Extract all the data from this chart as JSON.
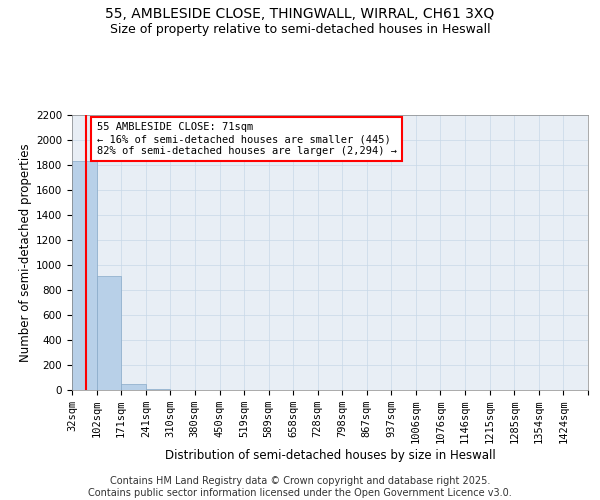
{
  "title": "55, AMBLESIDE CLOSE, THINGWALL, WIRRAL, CH61 3XQ",
  "subtitle": "Size of property relative to semi-detached houses in Heswall",
  "xlabel": "Distribution of semi-detached houses by size in Heswall",
  "ylabel": "Number of semi-detached properties",
  "bar_color": "#b8d0e8",
  "bar_edge_color": "#88aac8",
  "property_line_x": 71,
  "property_line_color": "red",
  "annotation_title": "55 AMBLESIDE CLOSE: 71sqm",
  "annotation_line1": "← 16% of semi-detached houses are smaller (445)",
  "annotation_line2": "82% of semi-detached houses are larger (2,294) →",
  "bin_labels": [
    "32sqm",
    "102sqm",
    "171sqm",
    "241sqm",
    "310sqm",
    "380sqm",
    "450sqm",
    "519sqm",
    "589sqm",
    "658sqm",
    "728sqm",
    "798sqm",
    "867sqm",
    "937sqm",
    "1006sqm",
    "1076sqm",
    "1146sqm",
    "1215sqm",
    "1285sqm",
    "1354sqm",
    "1424sqm"
  ],
  "bin_edges": [
    32,
    102,
    171,
    241,
    310,
    380,
    450,
    519,
    589,
    658,
    728,
    798,
    867,
    937,
    1006,
    1076,
    1146,
    1215,
    1285,
    1354,
    1424
  ],
  "bar_heights": [
    1830,
    910,
    50,
    8,
    2,
    1,
    0,
    0,
    0,
    0,
    0,
    0,
    0,
    0,
    0,
    0,
    0,
    0,
    0,
    0
  ],
  "ylim": [
    0,
    2200
  ],
  "yticks": [
    0,
    200,
    400,
    600,
    800,
    1000,
    1200,
    1400,
    1600,
    1800,
    2000,
    2200
  ],
  "background_color": "#e8eef5",
  "grid_color": "#c8d8e8",
  "footer_line1": "Contains HM Land Registry data © Crown copyright and database right 2025.",
  "footer_line2": "Contains public sector information licensed under the Open Government Licence v3.0.",
  "title_fontsize": 10,
  "subtitle_fontsize": 9,
  "axis_label_fontsize": 8.5,
  "tick_fontsize": 7.5,
  "footer_fontsize": 7
}
